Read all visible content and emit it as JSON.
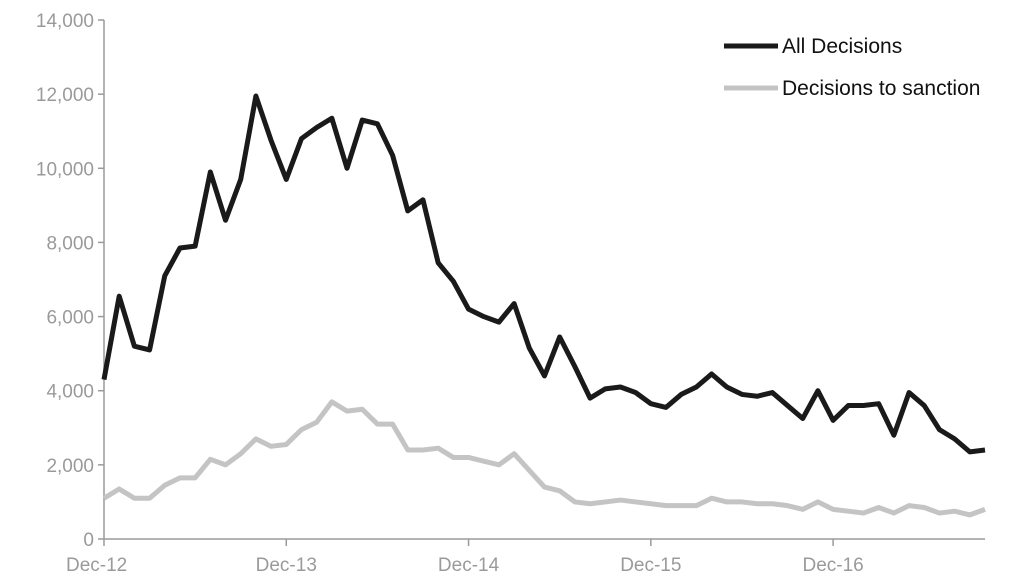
{
  "chart_data": {
    "type": "line",
    "title": "",
    "xlabel": "",
    "ylabel": "",
    "ylim": [
      0,
      14000
    ],
    "yticks": [
      0,
      2000,
      4000,
      6000,
      8000,
      10000,
      12000,
      14000
    ],
    "ytick_labels": [
      "0",
      "2,000",
      "4,000",
      "6,000",
      "8,000",
      "10,000",
      "12,000",
      "14,000"
    ],
    "x_index_range": [
      0,
      58
    ],
    "xticks": [
      {
        "index": 0,
        "label": "Dec-12"
      },
      {
        "index": 12,
        "label": "Dec-13"
      },
      {
        "index": 24,
        "label": "Dec-14"
      },
      {
        "index": 36,
        "label": "Dec-15"
      },
      {
        "index": 48,
        "label": "Dec-16"
      }
    ],
    "grid": false,
    "legend_position": "top-right",
    "series": [
      {
        "name": "All Decisions",
        "color": "#1a1a1a",
        "values": [
          4300,
          6550,
          5200,
          5100,
          7100,
          7850,
          7900,
          9900,
          8600,
          9700,
          11950,
          10750,
          9700,
          10800,
          11100,
          11350,
          10000,
          11300,
          11200,
          10350,
          8850,
          9150,
          7450,
          6950,
          6200,
          6000,
          5850,
          6350,
          5150,
          4400,
          5450,
          4650,
          3800,
          4050,
          4100,
          3950,
          3650,
          3550,
          3900,
          4100,
          4450,
          4100,
          3900,
          3850,
          3950,
          3600,
          3250,
          4000,
          3200,
          3600,
          3600,
          3650,
          2800,
          3950,
          3600,
          2950,
          2700,
          2350,
          2400
        ]
      },
      {
        "name": "Decisions to sanction",
        "color": "#c4c4c4",
        "values": [
          1100,
          1350,
          1100,
          1100,
          1450,
          1650,
          1650,
          2150,
          2000,
          2300,
          2700,
          2500,
          2550,
          2950,
          3150,
          3700,
          3450,
          3500,
          3100,
          3100,
          2400,
          2400,
          2450,
          2200,
          2200,
          2100,
          2000,
          2300,
          1850,
          1400,
          1300,
          1000,
          950,
          1000,
          1050,
          1000,
          950,
          900,
          900,
          900,
          1100,
          1000,
          1000,
          950,
          950,
          900,
          800,
          1000,
          800,
          750,
          700,
          850,
          700,
          900,
          850,
          700,
          750,
          650,
          800
        ]
      }
    ]
  }
}
